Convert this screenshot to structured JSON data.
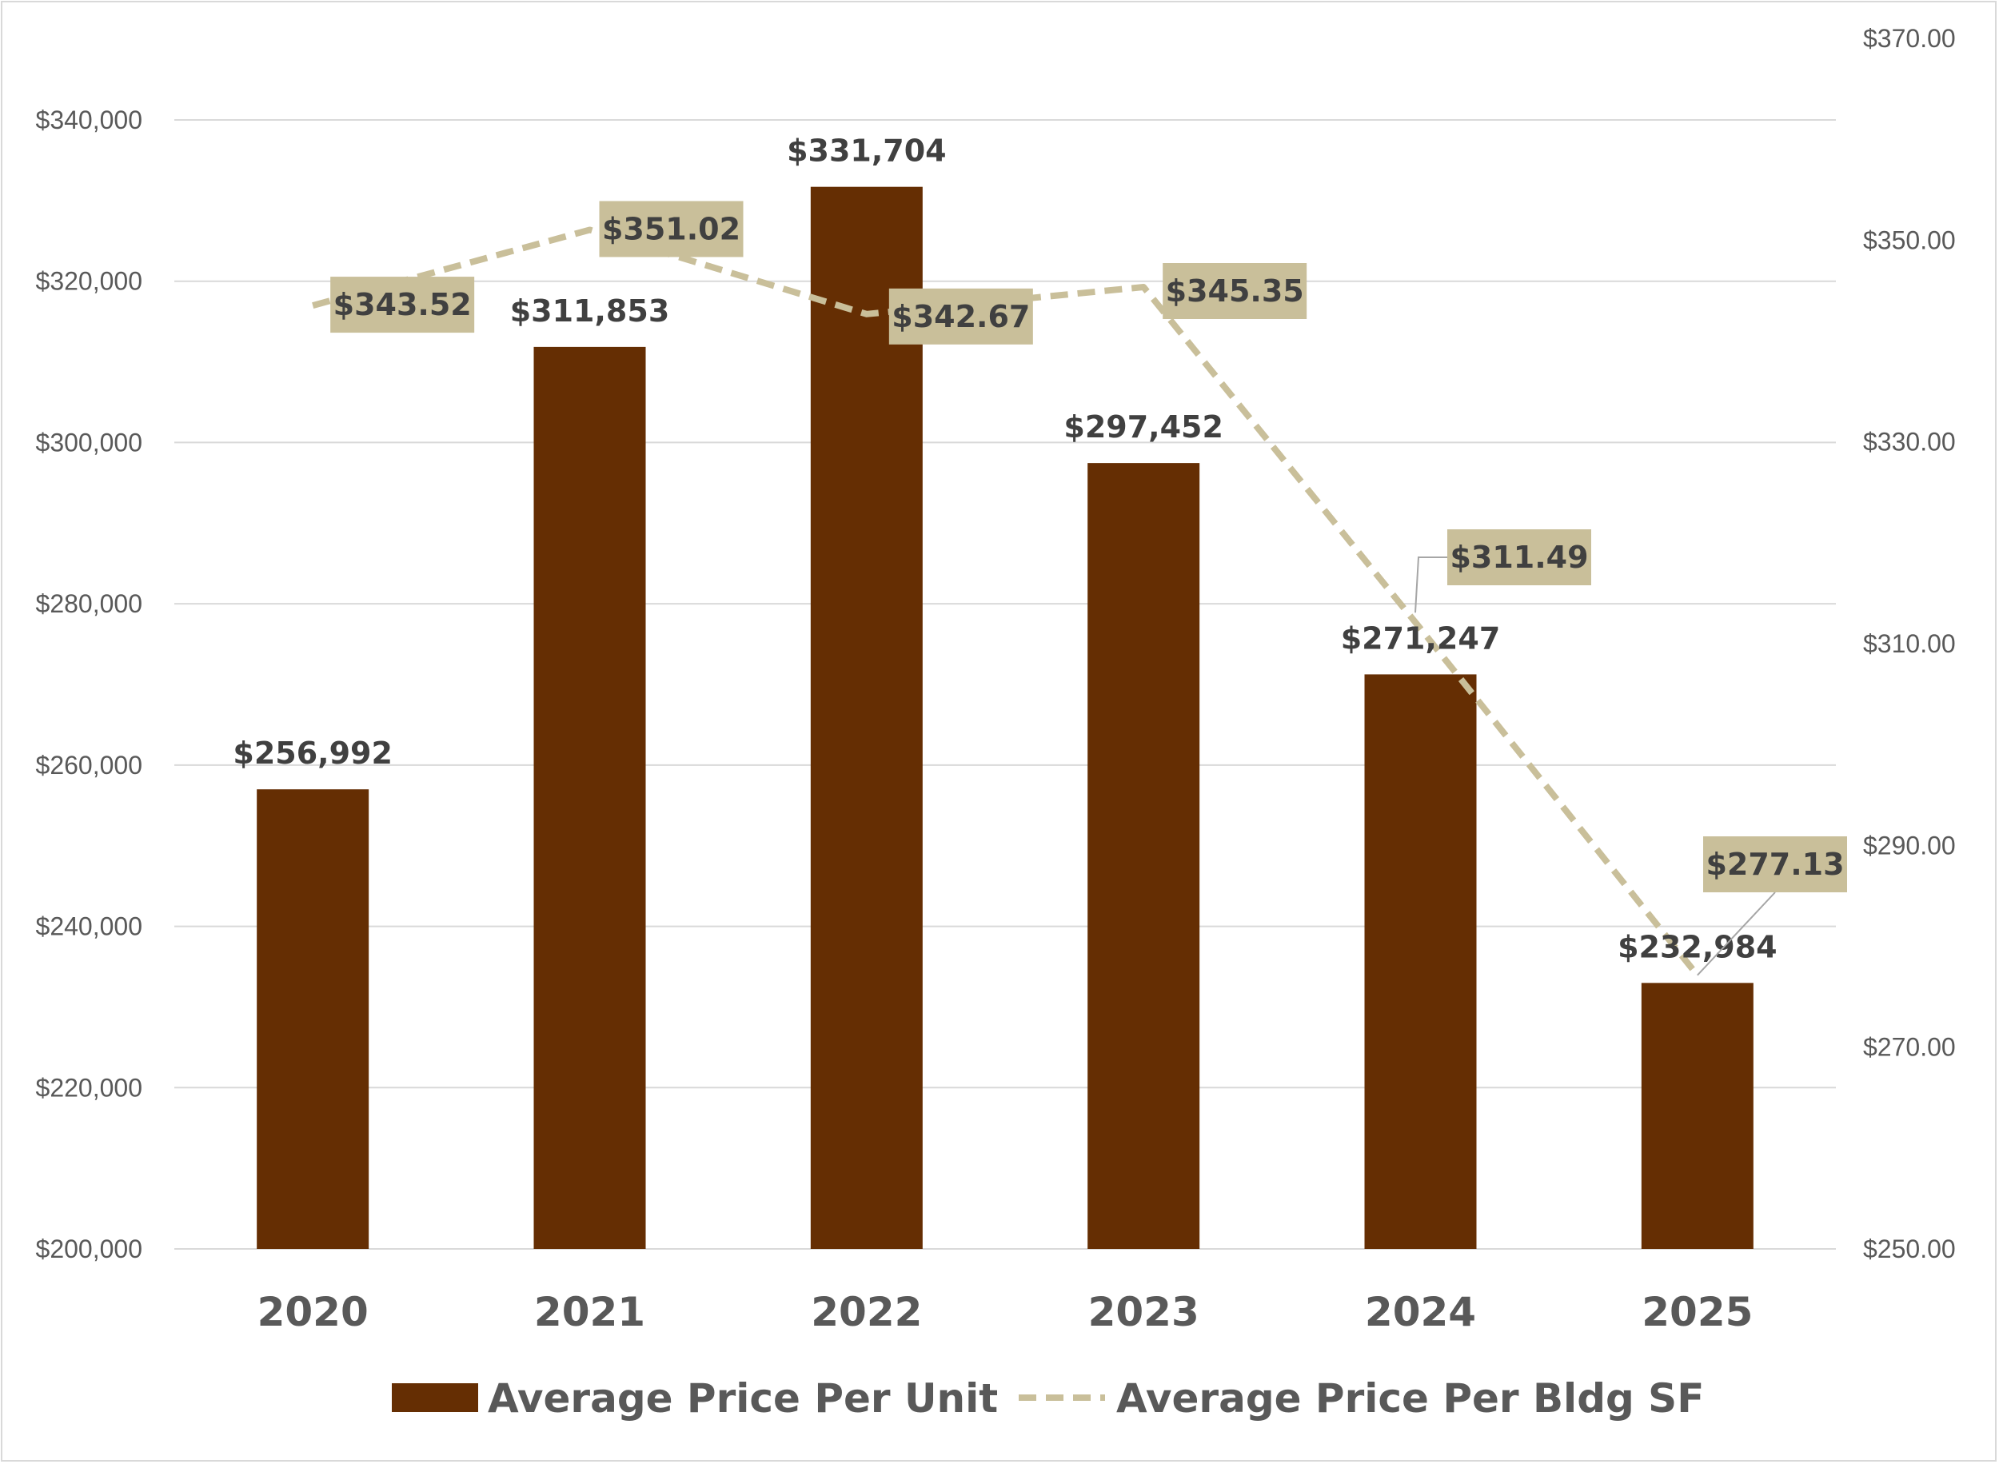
{
  "chart_data": {
    "type": "bar",
    "categories": [
      "2020",
      "2021",
      "2022",
      "2023",
      "2024",
      "2025"
    ],
    "series": [
      {
        "name": "Average Price Per Unit",
        "chart_type": "bar",
        "axis": "left",
        "values": [
          256992,
          311853,
          331704,
          297452,
          271247,
          232984
        ],
        "labels": [
          "$256,992",
          "$311,853",
          "$331,704",
          "$297,452",
          "$271,247",
          "$232,984"
        ],
        "color": "#652E03"
      },
      {
        "name": "Average Price Per Bldg SF",
        "chart_type": "line",
        "line_style": "dashed",
        "axis": "right",
        "values": [
          343.52,
          351.02,
          342.67,
          345.35,
          311.49,
          277.13
        ],
        "labels": [
          "$343.52",
          "$351.02",
          "$342.67",
          "$345.35",
          "$311.49",
          "$277.13"
        ],
        "color": "#C9BF9A",
        "label_box_color": "#C9BF9A"
      }
    ],
    "y_left": {
      "lim": [
        200000,
        340000
      ],
      "ticks": [
        200000,
        220000,
        240000,
        260000,
        280000,
        300000,
        320000,
        340000
      ],
      "tick_labels": [
        "$200,000",
        "$220,000",
        "$240,000",
        "$260,000",
        "$280,000",
        "$300,000",
        "$320,000",
        "$340,000"
      ]
    },
    "y_right": {
      "lim": [
        250,
        370
      ],
      "ticks": [
        250,
        270,
        290,
        310,
        330,
        350,
        370
      ],
      "tick_labels": [
        "$250.00",
        "$270.00",
        "$290.00",
        "$310.00",
        "$330.00",
        "$350.00",
        "$370.00"
      ]
    },
    "title": "",
    "xlabel": "",
    "ylabel": "",
    "grid": true,
    "legend_position": "bottom"
  }
}
